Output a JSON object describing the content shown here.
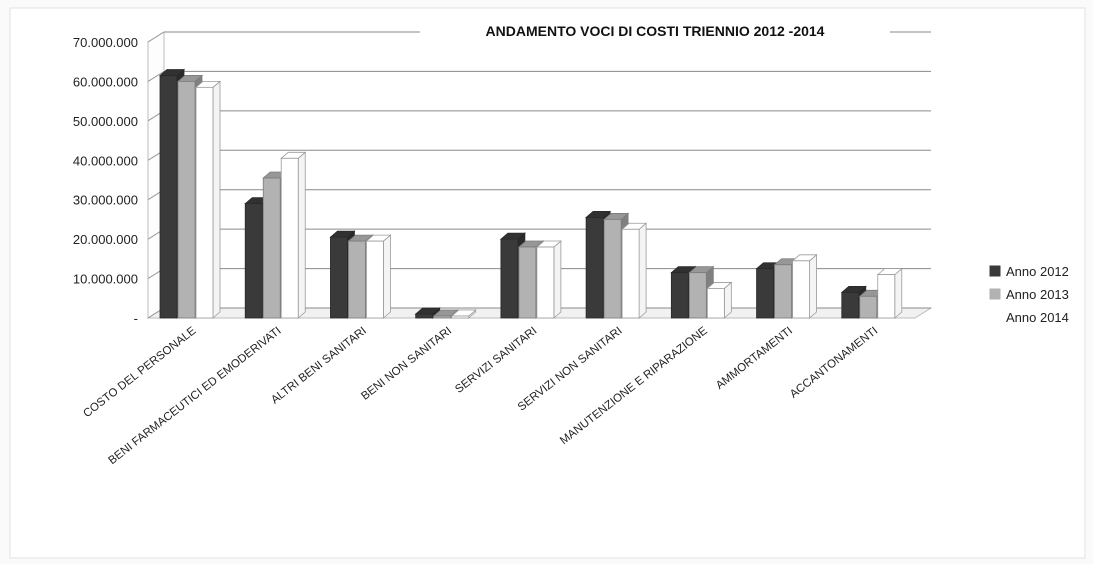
{
  "chart_data": {
    "type": "bar",
    "title": "ANDAMENTO  VOCI DI COSTI TRIENNIO 2012  -2014",
    "xlabel": "",
    "ylabel": "",
    "categories": [
      "COSTO DEL PERSONALE",
      "BENI FARMACEUTICI ED EMODERIVATI",
      "ALTRI BENI  SANITARI",
      "BENI NON SANITARI",
      "SERVIZI  SANITARI",
      "SERVIZI NON SANITARI",
      "MANUTENZIONE  E RIPARAZIONE",
      "AMMORTAMENTI",
      "ACCANTONAMENTI"
    ],
    "series": [
      {
        "name": "Anno 2012",
        "values": [
          61500000,
          29000000,
          20500000,
          1000000,
          20000000,
          25500000,
          11500000,
          12500000,
          6500000
        ]
      },
      {
        "name": "Anno 2013",
        "values": [
          60000000,
          35500000,
          19500000,
          500000,
          18000000,
          25000000,
          11500000,
          13500000,
          5500000
        ]
      },
      {
        "name": "Anno 2014",
        "values": [
          58500000,
          40500000,
          19500000,
          500000,
          18000000,
          22500000,
          7500000,
          14500000,
          11000000
        ]
      }
    ],
    "y_ticks": [
      "-",
      "10.000.000",
      "20.000.000",
      "30.000.000",
      "40.000.000",
      "50.000.000",
      "60.000.000",
      "70.000.000"
    ],
    "ylim": [
      0,
      70000000
    ],
    "grid": true,
    "legend_position": "right",
    "colors": {
      "Anno 2012": "#3a3a3a",
      "Anno 2013": "#b2b2b2",
      "Anno 2014": "#ffffff"
    }
  }
}
